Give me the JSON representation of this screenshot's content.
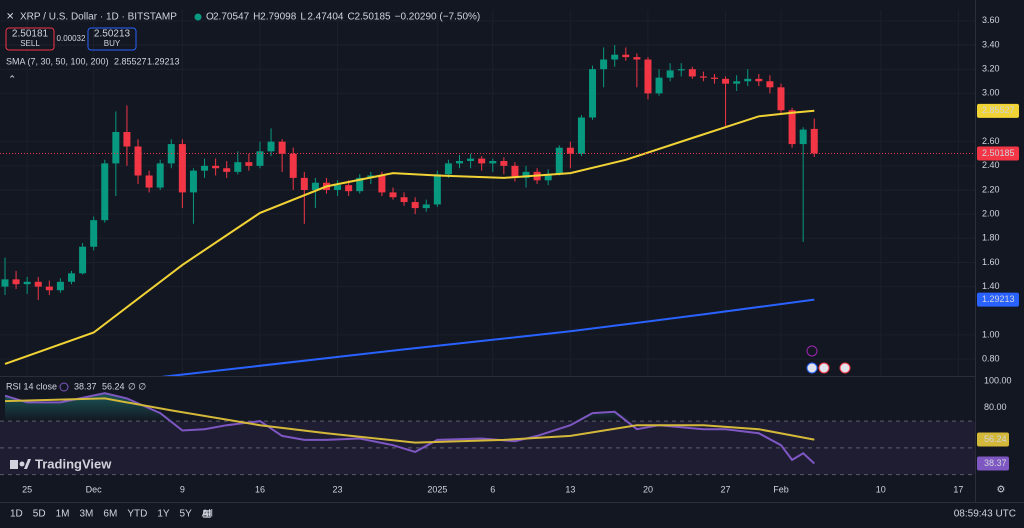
{
  "header": {
    "title": "XRP / U.S. Dollar · 1D · BITSTAMP",
    "o": "O",
    "h": "H",
    "l": "L",
    "c": "C",
    "change": "−0.20290 (−7.50%)",
    "sell_price": "2.50181",
    "sell": "SELL",
    "spread": "0.00032",
    "buy_price": "2.50213",
    "buy": "BUY",
    "sma": "SMA (7, 30, 50, 100, 200)",
    "rsi": "RSI 14 close",
    "rsi_extra": "∅ ∅",
    "logo": "TradingView",
    "ranges": [
      "1D",
      "5D",
      "1M",
      "3M",
      "6M",
      "YTD",
      "1Y",
      "5Y",
      "All"
    ],
    "clock": "08:59:43 UTC"
  },
  "chart_data": [
    {
      "type": "candlestick",
      "title": "XRP / U.S. Dollar · 1D · BITSTAMP",
      "open": [
        1.4,
        1.46,
        1.42,
        1.44,
        1.4,
        1.37,
        1.44,
        1.51,
        1.73,
        1.95,
        2.42,
        2.68,
        2.56,
        2.32,
        2.22,
        2.42,
        2.58,
        2.18,
        2.36,
        2.4,
        2.38,
        2.35,
        2.43,
        2.4,
        2.52,
        2.6,
        2.5,
        2.3,
        2.2,
        2.26,
        2.2,
        2.24,
        2.19,
        2.3,
        2.32,
        2.18,
        2.14,
        2.1,
        2.05,
        2.08,
        2.33,
        2.42,
        2.44,
        2.46,
        2.42,
        2.44,
        2.4,
        2.3,
        2.35,
        2.28,
        2.33,
        2.55,
        2.5,
        2.8,
        3.2,
        3.28,
        3.32,
        3.3,
        3.28,
        3.0,
        3.13,
        3.19,
        3.2,
        3.14,
        3.13,
        3.12,
        3.08,
        3.1,
        3.12,
        3.1,
        3.05,
        2.86,
        2.58,
        2.70547
      ],
      "high": [
        1.64,
        1.53,
        1.48,
        1.48,
        1.45,
        1.47,
        1.53,
        1.76,
        1.98,
        2.45,
        2.85,
        2.9,
        2.62,
        2.36,
        2.45,
        2.62,
        2.62,
        2.38,
        2.46,
        2.46,
        2.44,
        2.52,
        2.5,
        2.6,
        2.71,
        2.62,
        2.55,
        2.35,
        2.3,
        2.3,
        2.28,
        2.28,
        2.33,
        2.35,
        2.35,
        2.22,
        2.18,
        2.14,
        2.12,
        2.36,
        2.45,
        2.49,
        2.5,
        2.48,
        2.46,
        2.47,
        2.43,
        2.4,
        2.38,
        2.37,
        2.57,
        2.6,
        2.82,
        3.23,
        3.38,
        3.4,
        3.38,
        3.33,
        3.3,
        3.2,
        3.25,
        3.25,
        3.22,
        3.18,
        3.16,
        3.14,
        3.15,
        3.2,
        3.16,
        3.15,
        3.08,
        2.88,
        2.72,
        2.79098
      ],
      "low": [
        1.33,
        1.38,
        1.34,
        1.29,
        1.33,
        1.35,
        1.42,
        1.5,
        1.7,
        1.93,
        2.15,
        2.4,
        2.25,
        2.18,
        2.2,
        2.38,
        2.05,
        1.92,
        2.3,
        2.32,
        2.3,
        2.33,
        2.36,
        2.38,
        2.48,
        2.35,
        2.2,
        1.92,
        2.05,
        2.17,
        2.15,
        2.15,
        2.17,
        2.25,
        2.15,
        2.12,
        2.07,
        2.0,
        2.02,
        2.06,
        2.3,
        2.38,
        2.38,
        2.36,
        2.35,
        2.33,
        2.27,
        2.22,
        2.25,
        2.24,
        2.32,
        2.38,
        2.48,
        2.78,
        3.05,
        3.22,
        3.27,
        3.05,
        2.95,
        2.98,
        3.1,
        3.14,
        3.12,
        3.1,
        3.08,
        2.72,
        3.02,
        3.06,
        3.06,
        3.0,
        2.82,
        2.55,
        1.77,
        2.47404
      ],
      "close": [
        1.46,
        1.42,
        1.44,
        1.4,
        1.37,
        1.44,
        1.51,
        1.73,
        1.95,
        2.42,
        2.68,
        2.56,
        2.32,
        2.22,
        2.42,
        2.58,
        2.18,
        2.36,
        2.4,
        2.38,
        2.35,
        2.43,
        2.4,
        2.52,
        2.6,
        2.5,
        2.3,
        2.2,
        2.26,
        2.2,
        2.24,
        2.19,
        2.3,
        2.32,
        2.18,
        2.14,
        2.1,
        2.05,
        2.08,
        2.33,
        2.42,
        2.44,
        2.46,
        2.42,
        2.44,
        2.4,
        2.3,
        2.35,
        2.28,
        2.33,
        2.55,
        2.5,
        2.8,
        3.2,
        3.28,
        3.32,
        3.3,
        3.28,
        3.0,
        3.13,
        3.19,
        3.2,
        3.14,
        3.13,
        3.12,
        3.08,
        3.1,
        3.12,
        3.1,
        3.05,
        2.86,
        2.58,
        2.7,
        2.50185
      ],
      "up_color": "#089981",
      "down_color": "#f23645",
      "series": [
        {
          "color": "#f2d335",
          "x": [
            0,
            8,
            16,
            23,
            29,
            35,
            39,
            45,
            51,
            56,
            62,
            68,
            71,
            73
          ],
          "values": [
            0.76,
            1.02,
            1.58,
            2.01,
            2.23,
            2.34,
            2.32,
            2.3,
            2.34,
            2.45,
            2.63,
            2.81,
            2.84,
            2.85527
          ]
        },
        {
          "color": "#2962ff",
          "x": [
            12,
            36,
            51,
            63,
            73
          ],
          "values": [
            0.63,
            0.88,
            1.03,
            1.17,
            1.29213
          ]
        }
      ],
      "xlim": [
        -0.45,
        87.5
      ],
      "xticks": [
        {
          "value": 2,
          "label": "25"
        },
        {
          "value": 8,
          "label": "Dec"
        },
        {
          "value": 16,
          "label": "9"
        },
        {
          "value": 23,
          "label": "16"
        },
        {
          "value": 30,
          "label": "23"
        },
        {
          "value": 39,
          "label": "2025"
        },
        {
          "value": 44,
          "label": "6"
        },
        {
          "value": 51,
          "label": "13"
        },
        {
          "value": 58,
          "label": "20"
        },
        {
          "value": 65,
          "label": "27"
        },
        {
          "value": 70,
          "label": "Feb"
        },
        {
          "value": 79,
          "label": "10"
        },
        {
          "value": 86,
          "label": "17"
        }
      ],
      "ylim": [
        0.66,
        3.69
      ],
      "yticks": [
        {
          "value": 3.6,
          "label": "3.60"
        },
        {
          "value": 3.4,
          "label": "3.40"
        },
        {
          "value": 3.2,
          "label": "3.20"
        },
        {
          "value": 3.0,
          "label": "3.00"
        },
        {
          "value": 2.6,
          "label": "2.60"
        },
        {
          "value": 2.4,
          "label": "2.40"
        },
        {
          "value": 2.2,
          "label": "2.20"
        },
        {
          "value": 2.0,
          "label": "2.00"
        },
        {
          "value": 1.8,
          "label": "1.80"
        },
        {
          "value": 1.6,
          "label": "1.60"
        },
        {
          "value": 1.4,
          "label": "1.40"
        },
        {
          "value": 1.0,
          "label": "1.00"
        },
        {
          "value": 0.8,
          "label": "0.80"
        }
      ],
      "grid": true
    },
    {
      "type": "line",
      "title": "RSI 14 close",
      "series": [
        {
          "color": "#7e57c2",
          "x": [
            0,
            2,
            5,
            9,
            11,
            14,
            16,
            18,
            20,
            23,
            25,
            27,
            29,
            32,
            35,
            37,
            39,
            43,
            46,
            48,
            51,
            53,
            55,
            57,
            59,
            63,
            65,
            68,
            70,
            71,
            72,
            73
          ],
          "values": [
            89,
            84,
            84,
            91,
            87,
            76,
            63,
            64,
            67,
            70,
            59,
            56,
            56,
            57,
            52,
            47,
            56,
            57,
            55,
            59,
            67,
            76,
            77,
            64,
            67,
            64,
            64,
            61,
            52,
            41,
            46,
            38.37
          ]
        },
        {
          "color": "#d4b83a",
          "x": [
            0,
            9,
            15,
            23,
            29,
            37,
            45,
            51,
            57,
            63,
            68,
            73
          ],
          "values": [
            85,
            87,
            78,
            67,
            61,
            54,
            56,
            59,
            67,
            67,
            64,
            56.24
          ]
        }
      ],
      "levels": [
        70,
        50,
        30
      ],
      "ylim": [
        29,
        103
      ],
      "yticks": [
        {
          "value": 100,
          "label": "100.00"
        },
        {
          "value": 80,
          "label": "80.00"
        }
      ]
    }
  ]
}
